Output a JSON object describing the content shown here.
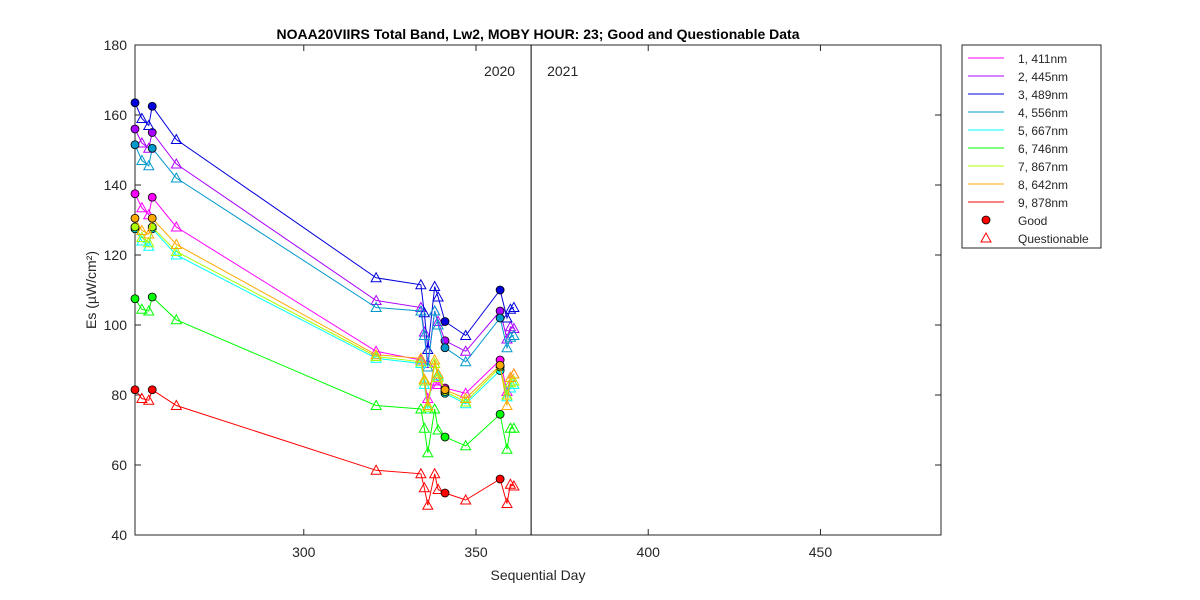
{
  "chart_data": {
    "type": "line",
    "title": "NOAA20VIIRS Total Band,  Lw2, MOBY HOUR: 23;  Good and Questionable Data",
    "xlabel": "Sequential Day",
    "ylabel": "Es (µW/cm²)",
    "xlim": [
      251,
      485
    ],
    "ylim": [
      40,
      180
    ],
    "xticks": [
      300,
      350,
      400,
      450
    ],
    "yticks": [
      40,
      60,
      80,
      100,
      120,
      140,
      160,
      180
    ],
    "grid": false,
    "legend_position": "outside-top-right",
    "year_divider": {
      "x": 366,
      "left_label": "2020",
      "right_label": "2021"
    },
    "x": [
      251,
      253,
      255,
      256,
      263,
      321,
      334,
      335,
      336,
      338,
      339,
      341,
      347,
      357,
      359,
      360,
      361
    ],
    "series": [
      {
        "name": "1, 411nm",
        "color": "#ff00ff",
        "values": [
          137.5,
          133.5,
          131.5,
          136.5,
          128,
          92.5,
          90,
          84,
          79,
          84,
          83,
          82,
          80.5,
          90,
          81,
          85,
          86
        ]
      },
      {
        "name": "2, 445nm",
        "color": "#aa00ff",
        "values": [
          156,
          152,
          150.5,
          155,
          146,
          107,
          105,
          98,
          89,
          104,
          101,
          95.5,
          92.5,
          104,
          96,
          99.5,
          99
        ]
      },
      {
        "name": "3, 489nm",
        "color": "#0000dd",
        "values": [
          163.5,
          159,
          157,
          162.5,
          153,
          113.5,
          111.5,
          103.5,
          93,
          111,
          108,
          101,
          97,
          110,
          102,
          104.5,
          105
        ]
      },
      {
        "name": "4, 556nm",
        "color": "#0099cc",
        "values": [
          151.5,
          147,
          145.5,
          150.5,
          142,
          105,
          104,
          97,
          88,
          104,
          100,
          93.5,
          89.5,
          102,
          93.5,
          96.5,
          97
        ]
      },
      {
        "name": "5, 667nm",
        "color": "#00ffff",
        "values": [
          127.5,
          124,
          122.5,
          127.5,
          120,
          90.5,
          89,
          83,
          76,
          89,
          85.5,
          80.5,
          77.5,
          87,
          79.5,
          82,
          83
        ]
      },
      {
        "name": "6, 746nm",
        "color": "#00ff00",
        "values": [
          107.5,
          104.5,
          104,
          108,
          101.5,
          77,
          76,
          70.5,
          63.5,
          76,
          70,
          68,
          65.5,
          74.5,
          64.5,
          70.5,
          70.5
        ]
      },
      {
        "name": "7, 867nm",
        "color": "#aaff00",
        "values": [
          128,
          125,
          123.5,
          128,
          121,
          91,
          89.5,
          84,
          76.5,
          89,
          85,
          81,
          78,
          88,
          80,
          83.5,
          84
        ]
      },
      {
        "name": "8, 642nm",
        "color": "#ffaa00",
        "values": [
          130.5,
          127,
          126,
          130.5,
          123,
          91.5,
          90.5,
          84.5,
          77,
          90,
          86,
          81.5,
          79,
          88.5,
          77,
          85,
          86
        ]
      },
      {
        "name": "9, 878nm",
        "color": "#ff0000",
        "values": [
          81.5,
          79,
          78.5,
          81.5,
          77,
          58.5,
          57.5,
          53.5,
          48.5,
          57.5,
          53,
          52,
          50,
          56,
          49,
          54.5,
          54
        ]
      }
    ],
    "quality": [
      "Good",
      "Questionable",
      "Questionable",
      "Good",
      "Questionable",
      "Questionable",
      "Questionable",
      "Questionable",
      "Questionable",
      "Questionable",
      "Questionable",
      "Good",
      "Questionable",
      "Good",
      "Questionable",
      "Questionable",
      "Questionable"
    ],
    "marker_legend": [
      {
        "label": "Good",
        "marker": "filled-circle"
      },
      {
        "label": "Questionable",
        "marker": "open-triangle"
      }
    ]
  }
}
